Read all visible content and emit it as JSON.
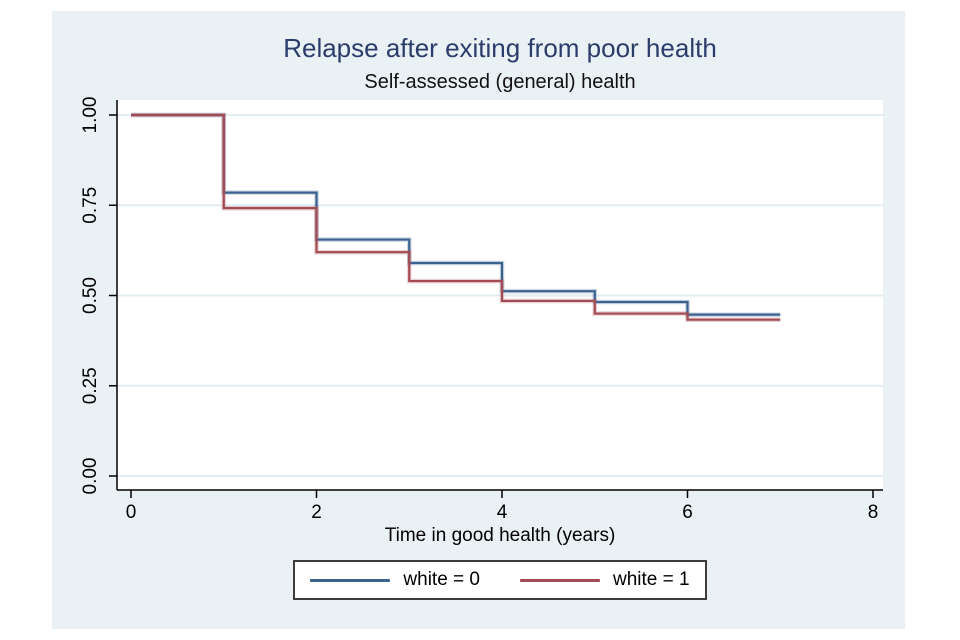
{
  "colors": {
    "panel_bg": "#eaf1f5",
    "plot_bg": "#ffffff",
    "grid": "#e2edf2",
    "axis": "#000000",
    "title": "#2b3c6b",
    "legend_border": "#3c3c3c",
    "series_blue": "#3a628f",
    "series_red": "#a34a52"
  },
  "chart_data": {
    "type": "line",
    "subtype": "kaplan-meier-step",
    "title": "Relapse after exiting from poor health",
    "subtitle": "Self-assessed (general) health",
    "xlabel": "Time in good health (years)",
    "ylabel": "",
    "xlim": [
      0,
      8
    ],
    "ylim": [
      0,
      1
    ],
    "x_ticks": [
      0,
      2,
      4,
      6,
      8
    ],
    "y_ticks": [
      "0.00",
      "0.25",
      "0.50",
      "0.75",
      "1.00"
    ],
    "grid": true,
    "legend_position": "bottom",
    "series": [
      {
        "name": "white = 0",
        "color": "#3a628f",
        "x": [
          0,
          1,
          2,
          3,
          4,
          5,
          6
        ],
        "y": [
          1.0,
          0.785,
          0.655,
          0.59,
          0.512,
          0.482,
          0.447
        ],
        "x_end": 7
      },
      {
        "name": "white = 1",
        "color": "#a34a52",
        "x": [
          0,
          1,
          2,
          3,
          4,
          5,
          6
        ],
        "y": [
          1.0,
          0.742,
          0.62,
          0.54,
          0.485,
          0.45,
          0.433
        ],
        "x_end": 7
      }
    ]
  }
}
